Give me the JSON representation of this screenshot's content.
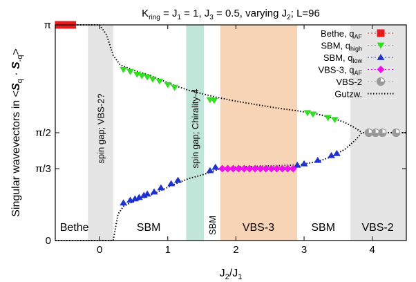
{
  "chart_data": {
    "type": "scatter",
    "title": "K",
    "title_parts": {
      "k": "K",
      "ring": "ring",
      "eq1": " = J",
      "one": "1",
      "eq2": " = 1, J",
      "three": "3",
      "rest": " = 0.5, varying J",
      "two": "2",
      "tail": "; L=96"
    },
    "xlabel": {
      "j": "J",
      "sub2": "2",
      "slash": "/J",
      "sub1": "1"
    },
    "ylabel": {
      "pre": "Singular wavevectors in <",
      "s1": "S",
      "q1": "q",
      "dot": " · ",
      "s2": "S",
      "q2": "-q",
      "post": ">"
    },
    "xlim": [
      -0.65,
      4.5
    ],
    "ylim": [
      0,
      3.1416
    ],
    "x_ticks": [
      {
        "value": 0,
        "label": "0"
      },
      {
        "value": 1,
        "label": "1"
      },
      {
        "value": 2,
        "label": "2"
      },
      {
        "value": 3,
        "label": "3"
      },
      {
        "value": 4,
        "label": "4"
      }
    ],
    "y_ticks": [
      {
        "value": 0,
        "label": "0"
      },
      {
        "value": 1.0472,
        "label": "π/3"
      },
      {
        "value": 1.5708,
        "label": "π/2"
      },
      {
        "value": 3.1416,
        "label": "π"
      }
    ],
    "regions": [
      {
        "x0": -0.17,
        "x1": 0.2,
        "color": "#e5e5e5",
        "label": "spin gap; VBS-2?",
        "orientation": "vertical"
      },
      {
        "x0": 1.27,
        "x1": 1.53,
        "color": "#bfe6d9",
        "label": "spin gap; Chirality-4",
        "orientation": "vertical"
      },
      {
        "x0": 1.77,
        "x1": 2.9,
        "color": "#f7d4b6",
        "label": "",
        "orientation": "none"
      },
      {
        "x0": 3.68,
        "x1": 4.5,
        "color": "#e5e5e5",
        "label": "",
        "orientation": "none"
      }
    ],
    "phase_labels": [
      {
        "x": -0.37,
        "label": "Bethe",
        "orientation": "horizontal"
      },
      {
        "x": 0.72,
        "label": "SBM",
        "orientation": "horizontal"
      },
      {
        "x": 1.65,
        "label": "SBM",
        "orientation": "vertical"
      },
      {
        "x": 2.33,
        "label": "VBS-3",
        "orientation": "horizontal"
      },
      {
        "x": 3.28,
        "label": "SBM",
        "orientation": "horizontal"
      },
      {
        "x": 4.08,
        "label": "VBS-2",
        "orientation": "horizontal"
      }
    ],
    "legend_position": "top-right",
    "series": [
      {
        "name": "Bethe, q",
        "name_sub": "AF",
        "marker": "square",
        "color": "#e41a1c",
        "points": [
          [
            -0.6,
            3.1416
          ],
          [
            -0.55,
            3.1416
          ],
          [
            -0.5,
            3.1416
          ],
          [
            -0.45,
            3.1416
          ],
          [
            -0.4,
            3.1416
          ]
        ]
      },
      {
        "name": "SBM, q",
        "name_sub": "high",
        "marker": "triangle-down",
        "color": "#33dd22",
        "points": [
          [
            0.35,
            2.49
          ],
          [
            0.45,
            2.46
          ],
          [
            0.55,
            2.42
          ],
          [
            0.62,
            2.4
          ],
          [
            0.7,
            2.38
          ],
          [
            0.78,
            2.35
          ],
          [
            0.88,
            2.32
          ],
          [
            1.0,
            2.27
          ],
          [
            1.1,
            2.23
          ],
          [
            1.62,
            2.05
          ],
          [
            1.68,
            2.04
          ],
          [
            3.05,
            1.86
          ],
          [
            3.13,
            1.84
          ],
          [
            3.35,
            1.79
          ],
          [
            3.45,
            1.76
          ]
        ]
      },
      {
        "name": "SBM, q",
        "name_sub": "low",
        "marker": "triangle-up",
        "color": "#1f33cc",
        "points": [
          [
            0.35,
            0.55
          ],
          [
            0.45,
            0.59
          ],
          [
            0.52,
            0.61
          ],
          [
            0.58,
            0.63
          ],
          [
            0.65,
            0.66
          ],
          [
            0.7,
            0.68
          ],
          [
            0.8,
            0.71
          ],
          [
            0.9,
            0.77
          ],
          [
            1.05,
            0.83
          ],
          [
            1.15,
            0.88
          ],
          [
            1.62,
            1.02
          ],
          [
            1.7,
            1.07
          ],
          [
            2.9,
            1.1
          ],
          [
            3.0,
            1.12
          ],
          [
            3.2,
            1.17
          ],
          [
            3.4,
            1.24
          ],
          [
            3.48,
            1.27
          ]
        ]
      },
      {
        "name": "VBS-3, q",
        "name_sub": "AF",
        "marker": "diamond",
        "color": "#ee11ee",
        "points": [
          [
            1.8,
            1.0472
          ],
          [
            1.88,
            1.0472
          ],
          [
            1.96,
            1.0472
          ],
          [
            2.04,
            1.0472
          ],
          [
            2.12,
            1.0472
          ],
          [
            2.2,
            1.0472
          ],
          [
            2.28,
            1.0472
          ],
          [
            2.36,
            1.0472
          ],
          [
            2.44,
            1.0472
          ],
          [
            2.52,
            1.0472
          ],
          [
            2.6,
            1.0472
          ],
          [
            2.68,
            1.0472
          ],
          [
            2.76,
            1.0472
          ],
          [
            2.84,
            1.0472
          ]
        ]
      },
      {
        "name": "VBS-2",
        "name_sub": "",
        "marker": "half-circle",
        "color": "#999999",
        "points": [
          [
            3.95,
            1.5708
          ],
          [
            4.05,
            1.5708
          ],
          [
            4.15,
            1.5708
          ],
          [
            4.35,
            1.5708
          ]
        ]
      },
      {
        "name": "Gutzw.",
        "name_sub": "",
        "marker": "dotted-line",
        "color": "#000000",
        "lines": [
          [
            [
              -0.65,
              0
            ],
            [
              0.2,
              0
            ],
            [
              0.27,
              0.38
            ],
            [
              0.35,
              0.5
            ],
            [
              0.5,
              0.57
            ],
            [
              0.7,
              0.64
            ],
            [
              0.9,
              0.73
            ],
            [
              1.1,
              0.82
            ],
            [
              1.3,
              0.9
            ],
            [
              1.45,
              0.94
            ],
            [
              1.55,
              0.97
            ],
            [
              1.75,
              1.04
            ],
            [
              2.0,
              1.07
            ],
            [
              2.3,
              1.08
            ],
            [
              2.6,
              1.09
            ],
            [
              2.9,
              1.1
            ],
            [
              3.2,
              1.15
            ],
            [
              3.4,
              1.22
            ],
            [
              3.6,
              1.33
            ],
            [
              3.75,
              1.46
            ],
            [
              3.85,
              1.5708
            ],
            [
              4.5,
              1.5708
            ]
          ],
          [
            [
              -0.65,
              3.1416
            ],
            [
              0.0,
              3.1416
            ],
            [
              0.1,
              3.0
            ],
            [
              0.2,
              2.7
            ],
            [
              0.3,
              2.56
            ],
            [
              0.5,
              2.48
            ],
            [
              0.7,
              2.42
            ],
            [
              0.9,
              2.34
            ],
            [
              1.1,
              2.26
            ],
            [
              1.3,
              2.19
            ],
            [
              1.5,
              2.14
            ],
            [
              1.7,
              2.09
            ],
            [
              2.0,
              2.03
            ],
            [
              2.3,
              1.98
            ],
            [
              2.6,
              1.93
            ],
            [
              2.9,
              1.89
            ],
            [
              3.2,
              1.84
            ],
            [
              3.4,
              1.79
            ],
            [
              3.6,
              1.72
            ],
            [
              3.75,
              1.64
            ],
            [
              3.85,
              1.5708
            ]
          ]
        ]
      }
    ]
  }
}
